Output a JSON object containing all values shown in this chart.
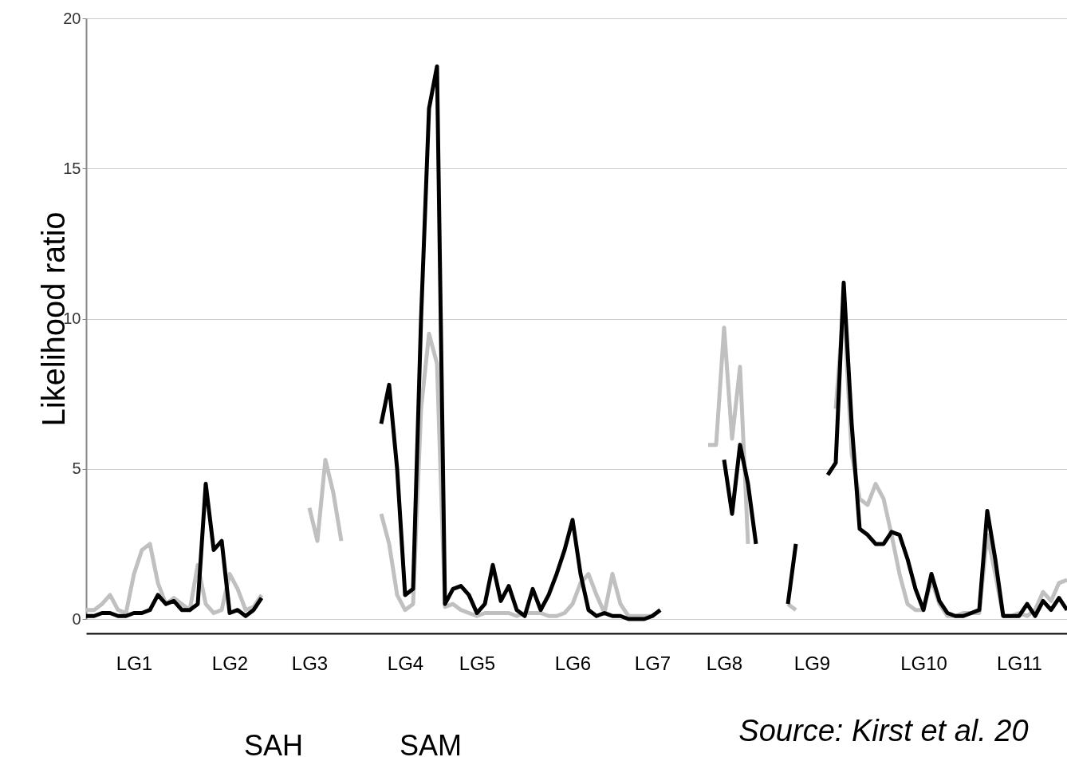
{
  "chart_data": {
    "type": "line",
    "ylabel": "Likelihood ratio",
    "categories": [
      null,
      null,
      null,
      null,
      null,
      null,
      "LG1",
      null,
      null,
      null,
      null,
      null,
      null,
      null,
      null,
      null,
      null,
      null,
      "LG2",
      null,
      null,
      null,
      null,
      null,
      null,
      null,
      null,
      null,
      "LG3",
      null,
      null,
      null,
      null,
      null,
      null,
      null,
      null,
      null,
      null,
      null,
      "LG4",
      null,
      null,
      null,
      null,
      null,
      null,
      null,
      null,
      "LG5",
      null,
      null,
      null,
      null,
      null,
      null,
      null,
      null,
      null,
      null,
      null,
      "LG6",
      null,
      null,
      null,
      null,
      null,
      null,
      null,
      null,
      null,
      "LG7",
      null,
      null,
      null,
      null,
      null,
      null,
      null,
      null,
      "LG8",
      null,
      null,
      null,
      null,
      null,
      null,
      null,
      null,
      null,
      null,
      "LG9",
      null,
      null,
      null,
      null,
      null,
      null,
      null,
      null,
      null,
      null,
      null,
      null,
      null,
      "LG10",
      null,
      null,
      null,
      null,
      null,
      null,
      null,
      null,
      null,
      null,
      null,
      "LG11",
      null,
      null,
      null,
      null,
      null,
      null
    ],
    "series": [
      {
        "color": "#c0c0c0",
        "values": [
          0.3,
          0.3,
          0.5,
          0.8,
          0.3,
          0.2,
          1.5,
          2.3,
          2.5,
          1.2,
          0.5,
          0.7,
          0.5,
          0.3,
          1.8,
          0.5,
          0.2,
          0.3,
          1.5,
          1.0,
          0.3,
          0.4,
          0.8,
          null,
          null,
          null,
          null,
          null,
          3.7,
          2.6,
          5.3,
          4.2,
          2.6,
          null,
          null,
          null,
          null,
          3.5,
          2.5,
          0.8,
          0.3,
          0.5,
          7.0,
          9.5,
          8.5,
          0.4,
          0.5,
          0.3,
          0.2,
          0.1,
          0.2,
          0.2,
          0.2,
          0.2,
          0.1,
          0.2,
          0.2,
          0.2,
          0.1,
          0.1,
          0.2,
          0.5,
          1.2,
          1.5,
          0.8,
          0.2,
          1.5,
          0.5,
          0.1,
          0.1,
          0.1,
          0.1,
          0.3,
          null,
          null,
          null,
          null,
          null,
          5.8,
          5.8,
          9.7,
          6.0,
          8.4,
          2.5,
          null,
          null,
          null,
          null,
          0.5,
          0.3,
          null,
          null,
          null,
          null,
          7.0,
          10.5,
          5.5,
          4.0,
          3.8,
          4.5,
          4.0,
          2.8,
          1.5,
          0.5,
          0.3,
          0.3,
          1.3,
          0.5,
          0.1,
          0.1,
          0.2,
          0.2,
          0.2,
          2.8,
          1.5,
          0.1,
          0.1,
          0.2,
          0.1,
          0.3,
          0.9,
          0.6,
          1.2,
          1.3
        ]
      },
      {
        "color": "#000000",
        "values": [
          0.1,
          0.1,
          0.2,
          0.2,
          0.1,
          0.1,
          0.2,
          0.2,
          0.3,
          0.8,
          0.5,
          0.6,
          0.3,
          0.3,
          0.5,
          4.5,
          2.3,
          2.6,
          0.2,
          0.3,
          0.1,
          0.3,
          0.7,
          null,
          null,
          null,
          null,
          null,
          null,
          null,
          null,
          null,
          null,
          null,
          null,
          null,
          null,
          6.5,
          7.8,
          5.0,
          0.8,
          1.0,
          10.0,
          17.0,
          18.4,
          0.5,
          1.0,
          1.1,
          0.8,
          0.2,
          0.5,
          1.8,
          0.6,
          1.1,
          0.3,
          0.1,
          1.0,
          0.3,
          0.8,
          1.5,
          2.3,
          3.3,
          1.5,
          0.3,
          0.1,
          0.2,
          0.1,
          0.1,
          0.0,
          0.0,
          0.0,
          0.1,
          0.3,
          null,
          null,
          null,
          null,
          null,
          null,
          null,
          5.3,
          3.5,
          5.8,
          4.5,
          2.5,
          null,
          null,
          null,
          0.5,
          2.5,
          null,
          null,
          null,
          4.8,
          5.2,
          11.2,
          6.5,
          3.0,
          2.8,
          2.5,
          2.5,
          2.9,
          2.8,
          2.0,
          1.0,
          0.3,
          1.5,
          0.6,
          0.2,
          0.1,
          0.1,
          0.2,
          0.3,
          3.6,
          2.0,
          0.1,
          0.1,
          0.1,
          0.5,
          0.1,
          0.6,
          0.3,
          0.7,
          0.3
        ]
      }
    ],
    "ylim": [
      0,
      20
    ],
    "yticks": [
      0,
      5,
      10,
      15,
      20
    ],
    "grid": "y",
    "annotations": [
      "SAH",
      "SAM",
      "Source: Kirst et al. 20"
    ]
  }
}
